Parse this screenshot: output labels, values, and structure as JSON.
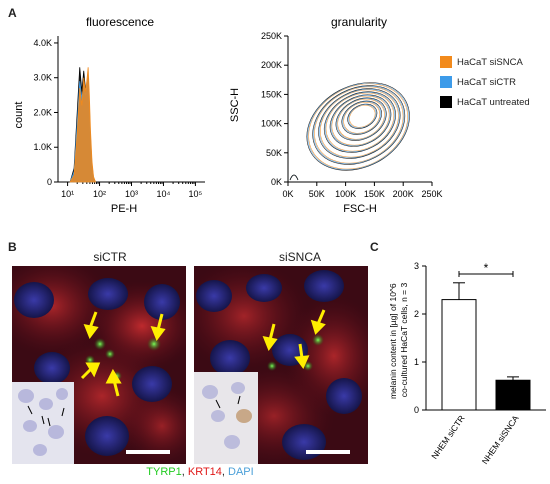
{
  "figure": {
    "panel_a": "A",
    "panel_b": "B",
    "panel_c": "C"
  },
  "chart_data": [
    {
      "type": "area",
      "title": "fluorescence",
      "xlabel": "PE-H",
      "ylabel": "count",
      "x_scale": "log",
      "x_ticks": [
        "10¹",
        "10²",
        "10³",
        "10⁴",
        "10⁵"
      ],
      "y_ticks": [
        "0",
        "1.0K",
        "2.0K",
        "3.0K",
        "4.0K"
      ],
      "ylim": [
        0,
        4200
      ],
      "series": [
        {
          "name": "HaCaT siSNCA",
          "color": "#f28a1c",
          "x": [
            12,
            16,
            20,
            24,
            28,
            32,
            36,
            40,
            44,
            48,
            52,
            58,
            65,
            75
          ],
          "y": [
            0,
            200,
            1400,
            2700,
            2200,
            3000,
            2600,
            2900,
            3300,
            2500,
            1500,
            600,
            150,
            0
          ]
        },
        {
          "name": "HaCaT siCTR",
          "color": "#3d9be9",
          "x": [
            12,
            16,
            20,
            24,
            28,
            32,
            36,
            40,
            44,
            48,
            52,
            58,
            65,
            75
          ],
          "y": [
            0,
            300,
            1700,
            2900,
            2400,
            2800,
            2500,
            2700,
            3000,
            2200,
            1300,
            500,
            120,
            0
          ]
        },
        {
          "name": "HaCaT untreated",
          "color": "#000000",
          "x": [
            12,
            16,
            20,
            24,
            28,
            32,
            36,
            40,
            44,
            48,
            52,
            58,
            65,
            75
          ],
          "y": [
            0,
            400,
            2000,
            3300,
            2600,
            3200,
            2700,
            2600,
            2800,
            2000,
            1100,
            400,
            100,
            0
          ]
        }
      ]
    },
    {
      "type": "scatter",
      "title": "granularity",
      "xlabel": "FSC-H",
      "ylabel": "SSC-H",
      "xlim": [
        0,
        250000
      ],
      "ylim": [
        0,
        250000
      ],
      "x_ticks": [
        "0K",
        "50K",
        "100K",
        "150K",
        "200K",
        "250K"
      ],
      "y_ticks": [
        "0K",
        "50K",
        "100K",
        "150K",
        "200K",
        "250K"
      ],
      "contour_center": [
        130000,
        115000
      ],
      "contour_colors": [
        "#f28a1c",
        "#3d9be9",
        "#000000"
      ]
    },
    {
      "type": "bar",
      "ylabel": "melanin content in [µg] of 10^6 co-cultured HaCaT cells, n = 3",
      "categories": [
        "NHEM siCTR",
        "NHEM siSNCA"
      ],
      "values": [
        2.3,
        0.62
      ],
      "errors": [
        0.35,
        0.07
      ],
      "ylim": [
        0,
        3
      ],
      "y_ticks": [
        "0",
        "1",
        "2",
        "3"
      ],
      "significance": "*",
      "colors": [
        "#ffffff",
        "#000000"
      ]
    }
  ],
  "legend": [
    {
      "label": "HaCaT siSNCA",
      "color": "#f28a1c"
    },
    {
      "label": "HaCaT siCTR",
      "color": "#3d9be9"
    },
    {
      "label": "HaCaT untreated",
      "color": "#000000"
    }
  ],
  "micrographs": {
    "left_title": "siCTR",
    "right_title": "siSNCA",
    "stain_tyrp1": "TYRP1",
    "stain_krt14": "KRT14",
    "stain_dapi": "DAPI",
    "sep": ", ",
    "color_tyrp1": "#22cc22",
    "color_krt14": "#e01818",
    "color_dapi": "#4a9fd8"
  }
}
